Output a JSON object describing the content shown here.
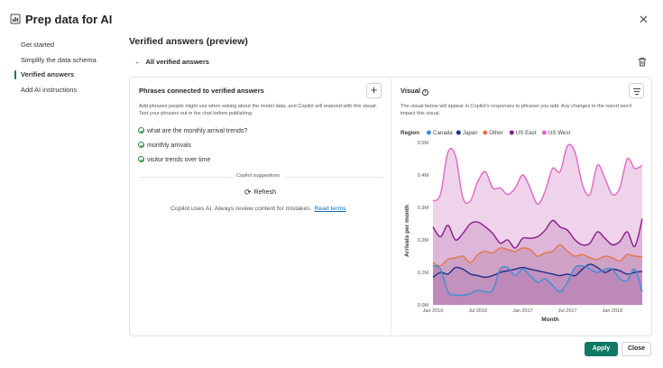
{
  "app": {
    "title": "Prep data for AI",
    "icon": "clipboard-data-icon",
    "accent": "#117865"
  },
  "nav": {
    "items": [
      {
        "label": "Get started"
      },
      {
        "label": "Simplify the data schema"
      },
      {
        "label": "Verified answers",
        "active": true
      },
      {
        "label": "Add AI instructions"
      }
    ]
  },
  "main": {
    "title": "Verified answers (preview)",
    "back_link": "All verified answers"
  },
  "phrases_panel": {
    "title": "Phrases connected to verified answers",
    "description": "Add phrases people might use when asking about the model data, and Copilot will respond with this visual. Test your phrases out in the chat before publishing.",
    "phrases": [
      "what are the monthly arrival trends?",
      "monthly arrivals",
      "visitor trends over time"
    ],
    "suggestions_label": "Copilot suggestions",
    "refresh_label": "Refresh",
    "disclaimer": "Copilot uses AI. Always review content for mistakes.",
    "read_terms": "Read terms"
  },
  "visual_panel": {
    "title": "Visual",
    "description": "The visual below will appear in Copilot's responses to phrases you add. Any changes to the report won't impact this visual."
  },
  "chart_data": {
    "type": "area",
    "stacked": false,
    "legend_title": "Region",
    "legend_position": "top-left",
    "xlabel": "Month",
    "ylabel": "Arrivals per month",
    "ylim": [
      0,
      500000
    ],
    "y_ticks": [
      "0.0M",
      "0.1M",
      "0.2M",
      "0.3M",
      "0.4M",
      "0.5M"
    ],
    "x_ticks": [
      {
        "label": "Jan 2016",
        "index": 0
      },
      {
        "label": "Jul 2016",
        "index": 6
      },
      {
        "label": "Jan 2017",
        "index": 12
      },
      {
        "label": "Jul 2017",
        "index": 18
      },
      {
        "label": "Jan 2018",
        "index": 24
      }
    ],
    "x": [
      "2016-01",
      "2016-02",
      "2016-03",
      "2016-04",
      "2016-05",
      "2016-06",
      "2016-07",
      "2016-08",
      "2016-09",
      "2016-10",
      "2016-11",
      "2016-12",
      "2017-01",
      "2017-02",
      "2017-03",
      "2017-04",
      "2017-05",
      "2017-06",
      "2017-07",
      "2017-08",
      "2017-09",
      "2017-10",
      "2017-11",
      "2017-12",
      "2018-01",
      "2018-02",
      "2018-03",
      "2018-04",
      "2018-05"
    ],
    "series": [
      {
        "name": "US West",
        "color": "#e066c8",
        "fill": "#efd3ea",
        "values": [
          320000,
          340000,
          470000,
          460000,
          330000,
          320000,
          380000,
          410000,
          360000,
          360000,
          340000,
          360000,
          400000,
          360000,
          310000,
          350000,
          420000,
          410000,
          490000,
          470000,
          370000,
          340000,
          430000,
          390000,
          340000,
          360000,
          450000,
          420000,
          430000
        ]
      },
      {
        "name": "US East",
        "color": "#8b1a8b",
        "fill": "#ddb6d9",
        "values": [
          240000,
          210000,
          245000,
          200000,
          220000,
          250000,
          255000,
          240000,
          220000,
          190000,
          200000,
          175000,
          205000,
          205000,
          210000,
          230000,
          260000,
          240000,
          230000,
          200000,
          185000,
          190000,
          225000,
          205000,
          185000,
          195000,
          225000,
          180000,
          265000
        ]
      },
      {
        "name": "Other",
        "color": "#e8734a",
        "fill": "#cfa2c5",
        "values": [
          130000,
          120000,
          140000,
          145000,
          150000,
          130000,
          155000,
          165000,
          160000,
          175000,
          170000,
          165000,
          175000,
          170000,
          150000,
          160000,
          165000,
          185000,
          165000,
          150000,
          155000,
          145000,
          140000,
          150000,
          145000,
          135000,
          155000,
          150000,
          148000
        ]
      },
      {
        "name": "Japan",
        "color": "#1f2f8a",
        "fill": "#c291bd",
        "values": [
          85000,
          100000,
          95000,
          115000,
          110000,
          95000,
          90000,
          85000,
          90000,
          100000,
          105000,
          110000,
          115000,
          110000,
          105000,
          100000,
          95000,
          90000,
          95000,
          90000,
          110000,
          125000,
          115000,
          100000,
          110000,
          105000,
          95000,
          100000,
          103000
        ]
      },
      {
        "name": "Canada",
        "color": "#3a8fd9",
        "fill": "#bd89b8",
        "values": [
          120000,
          110000,
          40000,
          30000,
          30000,
          35000,
          45000,
          40000,
          45000,
          110000,
          115000,
          90000,
          110000,
          90000,
          70000,
          80000,
          60000,
          40000,
          70000,
          115000,
          120000,
          110000,
          100000,
          110000,
          110000,
          80000,
          75000,
          110000,
          40000
        ]
      }
    ]
  },
  "footer": {
    "apply_label": "Apply",
    "close_label": "Close"
  }
}
